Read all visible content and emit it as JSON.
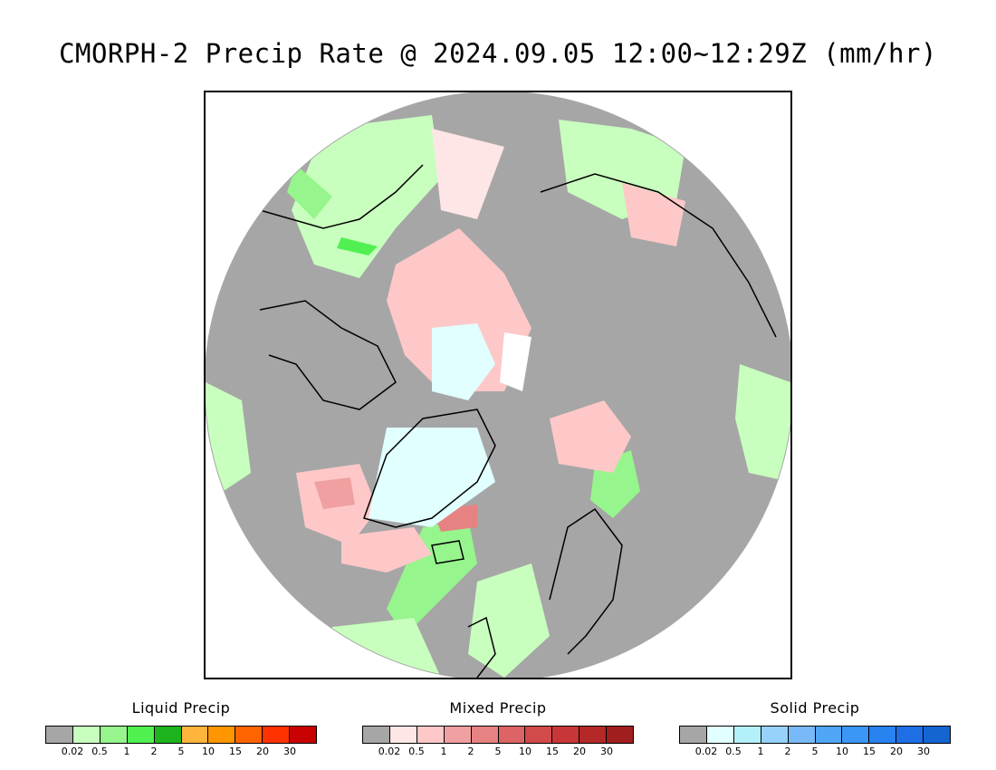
{
  "title": "CMORPH-2 Precip Rate @ 2024.09.05 12:00~12:29Z (mm/hr)",
  "map": {
    "projection": "north polar stereographic",
    "colors": {
      "no_precip": "#a6a6a6",
      "ocean_circle_bg": "#a6a6a6",
      "coastline": "#000000"
    }
  },
  "legends": [
    {
      "title": "Liquid Precip",
      "colors": [
        "#a6a6a6",
        "#c8ffbe",
        "#96f58c",
        "#50f050",
        "#1eb41e",
        "#ffb43c",
        "#ff9600",
        "#ff6400",
        "#ff3200",
        "#c80000"
      ],
      "ticks": [
        "0.02",
        "0.5",
        "1",
        "2",
        "5",
        "10",
        "15",
        "20",
        "30"
      ]
    },
    {
      "title": "Mixed Precip",
      "colors": [
        "#a6a6a6",
        "#ffe6e6",
        "#ffc8c8",
        "#f0a0a0",
        "#e68282",
        "#dc6464",
        "#d24b4b",
        "#c83737",
        "#b42828",
        "#a01e1e"
      ],
      "ticks": [
        "0.02",
        "0.5",
        "1",
        "2",
        "5",
        "10",
        "15",
        "20",
        "30"
      ]
    },
    {
      "title": "Solid Precip",
      "colors": [
        "#a6a6a6",
        "#e1ffff",
        "#b4f0fa",
        "#96d2fa",
        "#78b9fa",
        "#50a5f5",
        "#3c96f5",
        "#2882f0",
        "#1e6ee6",
        "#1464d2"
      ],
      "ticks": [
        "0.02",
        "0.5",
        "1",
        "2",
        "5",
        "10",
        "15",
        "20",
        "30"
      ]
    }
  ]
}
